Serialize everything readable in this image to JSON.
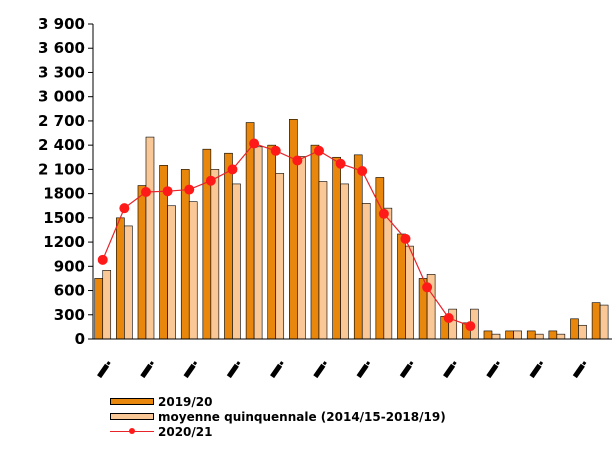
{
  "colors": {
    "series_2019_20": "#e8870c",
    "series_moyenne": "#f9c896",
    "series_2020_21": "#ff1a1a",
    "line_2020_21": "#e8232a",
    "axis": "#000000"
  },
  "legend": {
    "entry1": "2019/20",
    "entry2": "moyenne quinquennale (2014/15-2018/19)",
    "entry3": "2020/21"
  },
  "chart_data": {
    "type": "bar",
    "ylim": [
      0,
      3900
    ],
    "yticks": [
      0,
      300,
      600,
      900,
      1200,
      1500,
      1800,
      2100,
      2400,
      2700,
      3000,
      3300,
      3600,
      3900
    ],
    "ytick_labels": [
      "0",
      "300",
      "600",
      "900",
      "1200",
      "1500",
      "1800",
      "2 100",
      "2 400",
      "2 700",
      "3 000",
      "3 300",
      "3 600",
      "3 900"
    ],
    "num_categories": 24,
    "series": [
      {
        "name": "2019/20",
        "kind": "bar",
        "values": [
          750,
          1500,
          1900,
          2150,
          2100,
          2350,
          2300,
          2680,
          2400,
          2720,
          2400,
          2250,
          2280,
          2000,
          1300,
          750,
          280,
          200,
          100,
          100,
          100,
          100,
          250,
          450
        ]
      },
      {
        "name": "moyenne quinquennale (2014/15-2018/19)",
        "kind": "bar",
        "values": [
          850,
          1400,
          2500,
          1650,
          1700,
          2100,
          1920,
          2380,
          2050,
          2260,
          1950,
          1920,
          1680,
          1620,
          1150,
          800,
          370,
          370,
          60,
          100,
          60,
          60,
          170,
          420
        ]
      },
      {
        "name": "2020/21",
        "kind": "line",
        "values": [
          980,
          1620,
          1820,
          1830,
          1850,
          1960,
          2100,
          2420,
          2330,
          2210,
          2330,
          2170,
          2080,
          1550,
          1240,
          640,
          260,
          160
        ]
      }
    ]
  }
}
